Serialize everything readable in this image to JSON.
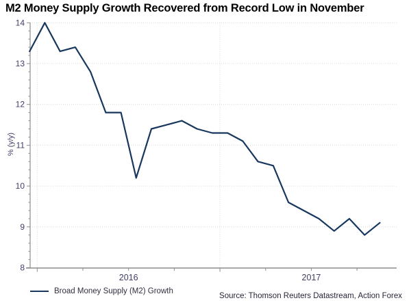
{
  "title": "M2 Money Supply Growth Recovered from Record Low in November",
  "legend": "Broad Money Supply (M2) Growth",
  "source": "Source: Thomson Reuters Datastream, Action Forex",
  "colors": {
    "line": "#17375e",
    "grid": "#d9d9d9",
    "axis": "#8c8c8c",
    "tick_text": "#3d3d66",
    "title_text": "#000000"
  },
  "chart_data": {
    "type": "line",
    "title": "M2 Money Supply Growth Recovered from Record Low in November",
    "xlabel": "",
    "ylabel": "% (y/y)",
    "ylim": [
      8,
      14
    ],
    "y_ticks": [
      8,
      9,
      10,
      11,
      12,
      13,
      14
    ],
    "y_minor_step": 0.2,
    "x_year_labels": [
      "2016",
      "2017"
    ],
    "grid": true,
    "legend_position": "bottom-left",
    "categories": [
      "Dec 2015",
      "Jan 2016",
      "Feb 2016",
      "Mar 2016",
      "Apr 2016",
      "May 2016",
      "Jun 2016",
      "Jul 2016",
      "Aug 2016",
      "Sep 2016",
      "Oct 2016",
      "Nov 2016",
      "Dec 2016",
      "Jan 2017",
      "Feb 2017",
      "Mar 2017",
      "Apr 2017",
      "May 2017",
      "Jun 2017",
      "Jul 2017",
      "Aug 2017",
      "Sep 2017",
      "Oct 2017",
      "Nov 2017"
    ],
    "series": [
      {
        "name": "Broad Money Supply (M2) Growth",
        "values": [
          13.3,
          14.0,
          13.3,
          13.4,
          12.8,
          11.8,
          11.8,
          10.2,
          11.4,
          11.5,
          11.6,
          11.4,
          11.3,
          11.3,
          11.1,
          10.6,
          10.5,
          9.6,
          9.4,
          9.2,
          8.9,
          9.2,
          8.8,
          9.1
        ]
      }
    ]
  }
}
